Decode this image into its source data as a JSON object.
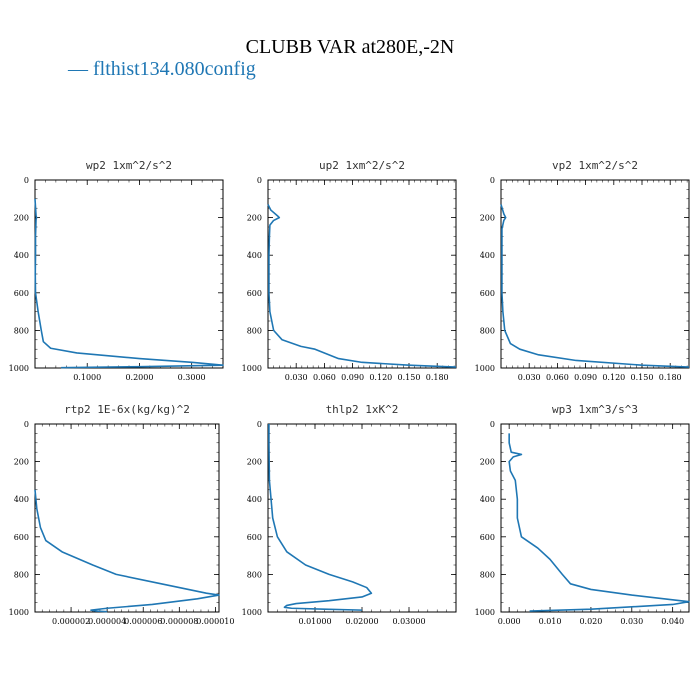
{
  "title": "CLUBB VAR at280E,-2N",
  "legend": {
    "label": "— flthist134.080config",
    "color": "#1f77b4"
  },
  "chart_data": [
    {
      "type": "line",
      "title": "wp2  1xm^2/s^2",
      "ylim": [
        1000,
        0
      ],
      "xlim": [
        0,
        0.36
      ],
      "yticks": [
        "0",
        "200",
        "400",
        "600",
        "800",
        "1000"
      ],
      "xticks": [
        {
          "v": 0.1,
          "label": "0.1000"
        },
        {
          "v": 0.2,
          "label": "0.2000"
        },
        {
          "v": 0.3,
          "label": "0.3000"
        }
      ],
      "series": [
        {
          "points": [
            [
              0,
              100
            ],
            [
              0.002,
              190
            ],
            [
              0.003,
              200
            ],
            [
              0.002,
              210
            ],
            [
              0.001,
              300
            ],
            [
              0.001,
              400
            ],
            [
              0.0005,
              500
            ],
            [
              0.001,
              600
            ],
            [
              0.006,
              700
            ],
            [
              0.012,
              800
            ],
            [
              0.016,
              860
            ],
            [
              0.03,
              895
            ],
            [
              0.08,
              920
            ],
            [
              0.2,
              950
            ],
            [
              0.3,
              970
            ],
            [
              0.36,
              985
            ],
            [
              0.2,
              993
            ],
            [
              0.05,
              998
            ]
          ]
        }
      ]
    },
    {
      "type": "line",
      "title": "up2  1xm^2/s^2",
      "ylim": [
        1000,
        0
      ],
      "xlim": [
        0,
        0.2
      ],
      "yticks": [
        "0",
        "200",
        "400",
        "600",
        "800",
        "1000"
      ],
      "xticks": [
        {
          "v": 0.03,
          "label": "0.030"
        },
        {
          "v": 0.06,
          "label": "0.060"
        },
        {
          "v": 0.09,
          "label": "0.090"
        },
        {
          "v": 0.12,
          "label": "0.120"
        },
        {
          "v": 0.15,
          "label": "0.150"
        },
        {
          "v": 0.18,
          "label": "0.180"
        }
      ],
      "series": [
        {
          "points": [
            [
              0,
              130
            ],
            [
              0.003,
              160
            ],
            [
              0.01,
              190
            ],
            [
              0.012,
              200
            ],
            [
              0.006,
              215
            ],
            [
              0.002,
              240
            ],
            [
              0.0015,
              300
            ],
            [
              0.001,
              400
            ],
            [
              0.001,
              500
            ],
            [
              0.001,
              600
            ],
            [
              0.002,
              700
            ],
            [
              0.006,
              800
            ],
            [
              0.015,
              850
            ],
            [
              0.035,
              885
            ],
            [
              0.05,
              900
            ],
            [
              0.06,
              920
            ],
            [
              0.075,
              950
            ],
            [
              0.1,
              970
            ],
            [
              0.15,
              985
            ],
            [
              0.2,
              995
            ]
          ]
        }
      ]
    },
    {
      "type": "line",
      "title": "vp2  1xm^2/s^2",
      "ylim": [
        1000,
        0
      ],
      "xlim": [
        0,
        0.2
      ],
      "yticks": [
        "0",
        "200",
        "400",
        "600",
        "800",
        "1000"
      ],
      "xticks": [
        {
          "v": 0.03,
          "label": "0.030"
        },
        {
          "v": 0.06,
          "label": "0.060"
        },
        {
          "v": 0.09,
          "label": "0.090"
        },
        {
          "v": 0.12,
          "label": "0.120"
        },
        {
          "v": 0.15,
          "label": "0.150"
        },
        {
          "v": 0.18,
          "label": "0.180"
        }
      ],
      "series": [
        {
          "points": [
            [
              0,
              130
            ],
            [
              0.003,
              180
            ],
            [
              0.005,
              200
            ],
            [
              0.003,
              215
            ],
            [
              0.001,
              260
            ],
            [
              0.001,
              400
            ],
            [
              0.001,
              500
            ],
            [
              0.001,
              600
            ],
            [
              0.002,
              700
            ],
            [
              0.004,
              800
            ],
            [
              0.01,
              870
            ],
            [
              0.02,
              900
            ],
            [
              0.04,
              930
            ],
            [
              0.08,
              960
            ],
            [
              0.15,
              985
            ],
            [
              0.2,
              995
            ]
          ]
        }
      ]
    },
    {
      "type": "line",
      "title": "rtp2  1E-6x(kg/kg)^2",
      "ylim": [
        1000,
        0
      ],
      "xlim": [
        0,
        1.02e-05
      ],
      "yticks": [
        "0",
        "200",
        "400",
        "600",
        "800",
        "1000"
      ],
      "xticks": [
        {
          "v": 2e-06,
          "label": "0.000002"
        },
        {
          "v": 4e-06,
          "label": "0.000004"
        },
        {
          "v": 6e-06,
          "label": "0.000006"
        },
        {
          "v": 8e-06,
          "label": "0.000008"
        },
        {
          "v": 1e-05,
          "label": "0.000010"
        }
      ],
      "series": [
        {
          "points": [
            [
              0,
              350
            ],
            [
              1e-07,
              450
            ],
            [
              3e-07,
              550
            ],
            [
              6e-07,
              620
            ],
            [
              1.5e-06,
              680
            ],
            [
              3.2e-06,
              750
            ],
            [
              4.5e-06,
              800
            ],
            [
              7e-06,
              850
            ],
            [
              9.5e-06,
              900
            ],
            [
              1.02e-05,
              910
            ],
            [
              9e-06,
              930
            ],
            [
              6.5e-06,
              960
            ],
            [
              4e-06,
              980
            ],
            [
              3.1e-06,
              990
            ],
            [
              3.4e-06,
              995
            ],
            [
              4e-06,
              998
            ]
          ]
        }
      ]
    },
    {
      "type": "line",
      "title": "thlp2  1xK^2",
      "ylim": [
        1000,
        0
      ],
      "xlim": [
        0,
        0.04
      ],
      "yticks": [
        "0",
        "200",
        "400",
        "600",
        "800",
        "1000"
      ],
      "xticks": [
        {
          "v": 0.01,
          "label": "0.01000"
        },
        {
          "v": 0.02,
          "label": "0.02000"
        },
        {
          "v": 0.03,
          "label": "0.03000"
        }
      ],
      "series": [
        {
          "points": [
            [
              0.0002,
              0
            ],
            [
              0.0002,
              100
            ],
            [
              0.0003,
              300
            ],
            [
              0.001,
              500
            ],
            [
              0.002,
              600
            ],
            [
              0.004,
              680
            ],
            [
              0.008,
              750
            ],
            [
              0.013,
              800
            ],
            [
              0.018,
              840
            ],
            [
              0.021,
              870
            ],
            [
              0.022,
              900
            ],
            [
              0.02,
              920
            ],
            [
              0.013,
              940
            ],
            [
              0.006,
              955
            ],
            [
              0.004,
              965
            ],
            [
              0.0035,
              975
            ],
            [
              0.005,
              980
            ],
            [
              0.012,
              985
            ],
            [
              0.02,
              990
            ]
          ]
        }
      ]
    },
    {
      "type": "line",
      "title": "wp3  1xm^3/s^3",
      "ylim": [
        1000,
        0
      ],
      "xlim": [
        -0.002,
        0.044
      ],
      "yticks": [
        "0",
        "200",
        "400",
        "600",
        "800",
        "1000"
      ],
      "xticks": [
        {
          "v": 0,
          "label": "0.000"
        },
        {
          "v": 0.01,
          "label": "0.010"
        },
        {
          "v": 0.02,
          "label": "0.020"
        },
        {
          "v": 0.03,
          "label": "0.030"
        },
        {
          "v": 0.04,
          "label": "0.040"
        }
      ],
      "series": [
        {
          "points": [
            [
              0,
              50
            ],
            [
              0,
              100
            ],
            [
              0.0005,
              150
            ],
            [
              0.003,
              162
            ],
            [
              0.001,
              175
            ],
            [
              0,
              200
            ],
            [
              0.0003,
              250
            ],
            [
              0.0015,
              300
            ],
            [
              0.002,
              400
            ],
            [
              0.002,
              500
            ],
            [
              0.003,
              600
            ],
            [
              0.007,
              660
            ],
            [
              0.01,
              720
            ],
            [
              0.013,
              800
            ],
            [
              0.015,
              850
            ],
            [
              0.02,
              880
            ],
            [
              0.03,
              910
            ],
            [
              0.04,
              935
            ],
            [
              0.044,
              945
            ],
            [
              0.04,
              960
            ],
            [
              0.02,
              985
            ],
            [
              0.005,
              995
            ]
          ]
        }
      ]
    }
  ]
}
